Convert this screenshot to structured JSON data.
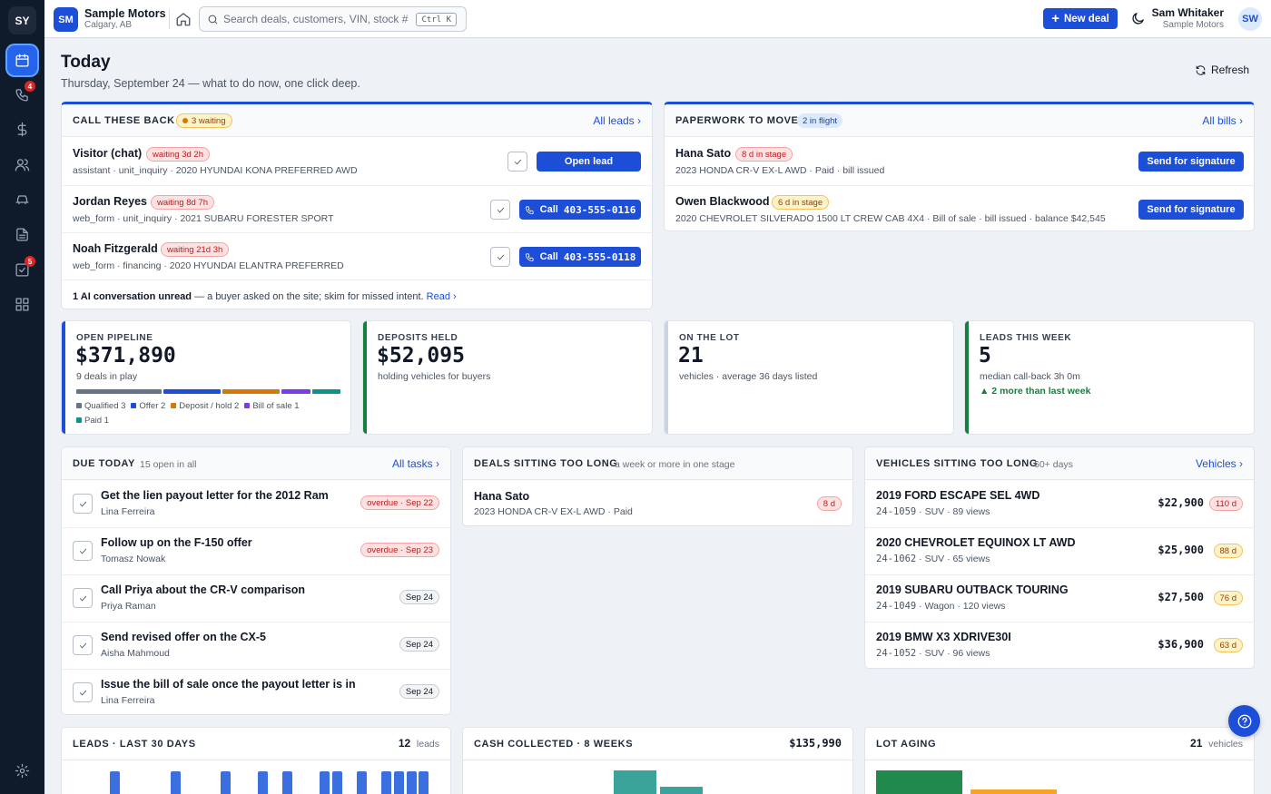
{
  "rail": {
    "logo": "SY",
    "badges": {
      "calls": "4",
      "tasks": "5"
    }
  },
  "topbar": {
    "org_initials": "SM",
    "org_name": "Sample Motors",
    "org_city": "Calgary, AB",
    "search_placeholder": "Search deals, customers, VIN, stock #",
    "search_shortcut": "Ctrl K",
    "new_deal": "New deal",
    "user_name": "Sam Whitaker",
    "user_org": "Sample Motors",
    "user_initials": "SW"
  },
  "header": {
    "title": "Today",
    "subtitle": "Thursday, September 24 — what to do now, one click deep.",
    "refresh": "Refresh"
  },
  "callback": {
    "title": "CALL THESE BACK",
    "badge": "3 waiting",
    "link": "All leads ›",
    "rows": [
      {
        "name": "Visitor (chat)",
        "wait": "waiting 3d 2h",
        "meta": "assistant · unit_inquiry · 2020 HYUNDAI KONA PREFERRED AWD",
        "action": "Open lead"
      },
      {
        "name": "Jordan Reyes",
        "wait": "waiting 8d 7h",
        "meta": "web_form · unit_inquiry · 2021 SUBARU FORESTER SPORT",
        "action_prefix": "Call",
        "action": "403-555-0116"
      },
      {
        "name": "Noah Fitzgerald",
        "wait": "waiting 21d 3h",
        "meta": "web_form · financing · 2020 HYUNDAI ELANTRA PREFERRED",
        "action_prefix": "Call",
        "action": "403-555-0118"
      }
    ],
    "foot_bold": "1 AI conversation unread",
    "foot_text": " — a buyer asked on the site; skim for missed intent. ",
    "foot_link": "Read ›"
  },
  "paperwork": {
    "title": "PAPERWORK TO MOVE",
    "badge": "2 in flight",
    "link": "All bills ›",
    "rows": [
      {
        "name": "Hana Sato",
        "stage": "8 d in stage",
        "meta": "2023 HONDA CR-V EX-L AWD · Paid · bill issued",
        "action": "Send for signature"
      },
      {
        "name": "Owen Blackwood",
        "stage": "6 d in stage",
        "meta": "2020 CHEVROLET SILVERADO 1500 LT CREW CAB 4X4 · Bill of sale · bill issued · balance $42,545",
        "action": "Send for signature"
      }
    ]
  },
  "stats": {
    "pipeline": {
      "label": "OPEN PIPELINE",
      "value": "$371,890",
      "sub": "9 deals in play",
      "segments": [
        {
          "name": "Qualified 3",
          "count": 3,
          "color": "#64748b"
        },
        {
          "name": "Offer 2",
          "count": 2,
          "color": "#1d4ed8"
        },
        {
          "name": "Deposit / hold 2",
          "count": 2,
          "color": "#d97706"
        },
        {
          "name": "Bill of sale 1",
          "count": 1,
          "color": "#7c3aed"
        },
        {
          "name": "Paid 1",
          "count": 1,
          "color": "#0d9488"
        }
      ]
    },
    "deposits": {
      "label": "DEPOSITS HELD",
      "value": "$52,095",
      "sub": "holding vehicles for buyers"
    },
    "lot": {
      "label": "ON THE LOT",
      "value": "21",
      "sub": "vehicles · average 36 days listed"
    },
    "leads": {
      "label": "LEADS THIS WEEK",
      "value": "5",
      "sub": "median call-back 3h 0m",
      "trend": "▲ 2 more than last week"
    }
  },
  "due": {
    "title": "DUE TODAY",
    "note": "15 open in all",
    "link": "All tasks ›",
    "rows": [
      {
        "title": "Get the lien payout letter for the 2012 Ram",
        "who": "Lina Ferreira",
        "due": "overdue · Sep 22",
        "overdue": true
      },
      {
        "title": "Follow up on the F-150 offer",
        "who": "Tomasz Nowak",
        "due": "overdue · Sep 23",
        "overdue": true
      },
      {
        "title": "Call Priya about the CR-V comparison",
        "who": "Priya Raman",
        "due": "Sep 24",
        "overdue": false
      },
      {
        "title": "Send revised offer on the CX-5",
        "who": "Aisha Mahmoud",
        "due": "Sep 24",
        "overdue": false
      },
      {
        "title": "Issue the bill of sale once the payout letter is in",
        "who": "Lina Ferreira",
        "due": "Sep 24",
        "overdue": false
      }
    ]
  },
  "stale_deals": {
    "title": "DEALS SITTING TOO LONG",
    "note": "a week or more in one stage",
    "rows": [
      {
        "name": "Hana Sato",
        "meta": "2023 HONDA CR-V EX-L AWD · Paid",
        "days": "8 d"
      }
    ]
  },
  "stale_vehicles": {
    "title": "VEHICLES SITTING TOO LONG",
    "note": "60+ days",
    "link": "Vehicles ›",
    "rows": [
      {
        "name": "2019 FORD ESCAPE SEL 4WD",
        "stock": "24-1059",
        "meta": " · SUV · 89 views",
        "price": "$22,900",
        "days": "110 d",
        "color": "red"
      },
      {
        "name": "2020 CHEVROLET EQUINOX LT AWD",
        "stock": "24-1062",
        "meta": " · SUV · 65 views",
        "price": "$25,900",
        "days": "88 d",
        "color": "amber"
      },
      {
        "name": "2019 SUBARU OUTBACK TOURING",
        "stock": "24-1049",
        "meta": " · Wagon · 120 views",
        "price": "$27,500",
        "days": "76 d",
        "color": "amber"
      },
      {
        "name": "2019 BMW X3 XDRIVE30I",
        "stock": "24-1052",
        "meta": " · SUV · 96 views",
        "price": "$36,900",
        "days": "63 d",
        "color": "amber"
      }
    ]
  },
  "leads30": {
    "title": "LEADS · LAST 30 DAYS",
    "count": "12",
    "unit": "leads"
  },
  "cash": {
    "title": "CASH COLLECTED · 8 WEEKS",
    "total": "$135,990"
  },
  "aging": {
    "title": "LOT AGING",
    "count": "21",
    "unit": "vehicles"
  }
}
